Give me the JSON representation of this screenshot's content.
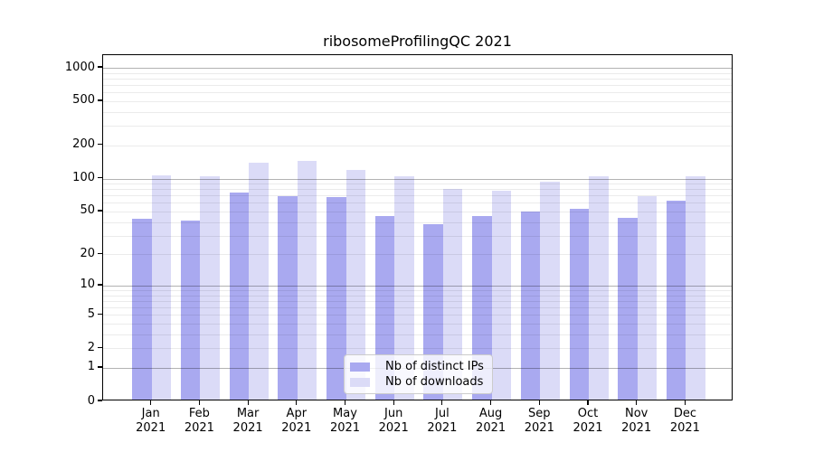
{
  "title": "ribosomeProfilingQC 2021",
  "chart_data": {
    "type": "bar",
    "title": "ribosomeProfilingQC 2021",
    "categories": [
      "Jan 2021",
      "Feb 2021",
      "Mar 2021",
      "Apr 2021",
      "May 2021",
      "Jun 2021",
      "Jul 2021",
      "Aug 2021",
      "Sep 2021",
      "Oct 2021",
      "Nov 2021",
      "Dec 2021"
    ],
    "series": [
      {
        "name": "Nb of distinct IPs",
        "color": "#a9a9f0",
        "values": [
          41,
          40,
          72,
          67,
          65,
          44,
          37,
          44,
          48,
          51,
          42,
          61
        ]
      },
      {
        "name": "Nb of downloads",
        "color": "#dbdbf7",
        "values": [
          103,
          101,
          134,
          139,
          115,
          101,
          78,
          75,
          90,
          101,
          67,
          101
        ]
      }
    ],
    "xlabel": "",
    "ylabel": "",
    "yscale": "log1p",
    "yticks": [
      0,
      1,
      2,
      5,
      10,
      20,
      50,
      100,
      200,
      500,
      1000
    ],
    "ylim": [
      0,
      1300
    ],
    "grid": "horizontal; faint minor lines, darker lines at powers of 10",
    "legend_position": "lower center inside plot"
  },
  "legend": {
    "items": [
      {
        "label": "Nb of distinct IPs"
      },
      {
        "label": "Nb of downloads"
      }
    ]
  },
  "colors": {
    "background": "#ffffff",
    "axis": "#000000",
    "major_grid": "rgba(0,0,0,0.30)",
    "minor_grid": "rgba(0,0,0,0.08)",
    "bar_ips": "#a9a9f0",
    "bar_downloads": "#dbdbf7"
  }
}
